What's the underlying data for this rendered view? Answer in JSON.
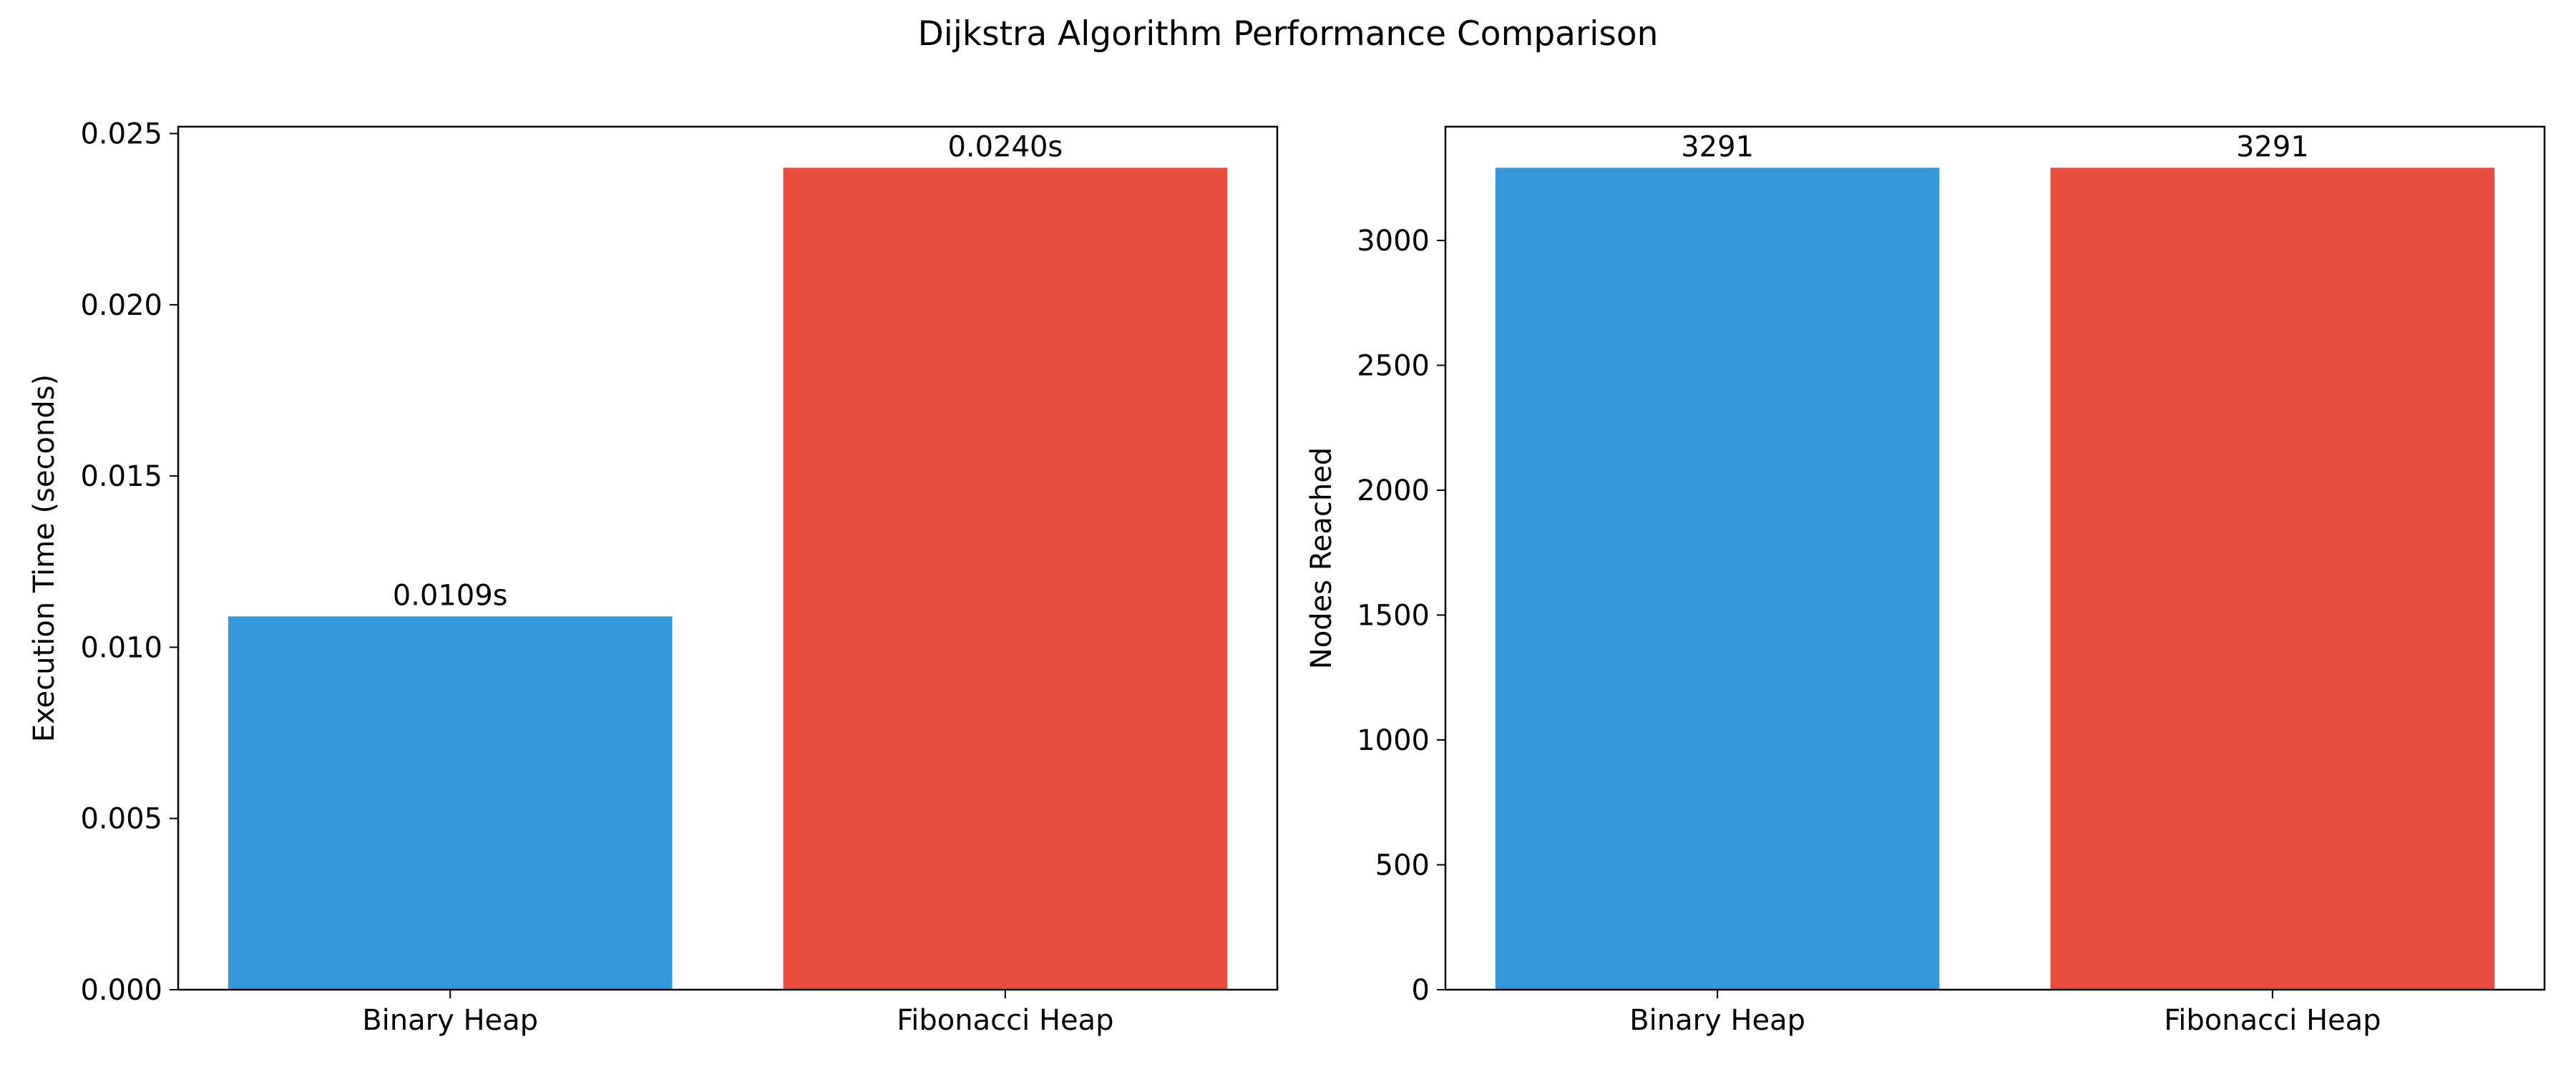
{
  "figure": {
    "title": "Dijkstra Algorithm Performance Comparison"
  },
  "chart_data": [
    {
      "type": "bar",
      "categories": [
        "Binary Heap",
        "Fibonacci Heap"
      ],
      "values": [
        0.0109,
        0.024
      ],
      "value_labels": [
        "0.0109s",
        "0.0240s"
      ],
      "colors": [
        "#3498db",
        "#e74c3c"
      ],
      "xlabel": "",
      "ylabel": "Execution Time (seconds)",
      "ylim": [
        0,
        0.0252
      ],
      "yticks": [
        0,
        0.005,
        0.01,
        0.015,
        0.02,
        0.025
      ],
      "ytick_labels": [
        "0.000",
        "0.005",
        "0.010",
        "0.015",
        "0.020",
        "0.025"
      ],
      "grid": false
    },
    {
      "type": "bar",
      "categories": [
        "Binary Heap",
        "Fibonacci Heap"
      ],
      "values": [
        3291,
        3291
      ],
      "value_labels": [
        "3291",
        "3291"
      ],
      "colors": [
        "#3498db",
        "#e74c3c"
      ],
      "xlabel": "",
      "ylabel": "Nodes Reached",
      "ylim": [
        0,
        3455.55
      ],
      "yticks": [
        0,
        500,
        1000,
        1500,
        2000,
        2500,
        3000
      ],
      "ytick_labels": [
        "0",
        "500",
        "1000",
        "1500",
        "2000",
        "2500",
        "3000"
      ],
      "grid": false
    }
  ]
}
